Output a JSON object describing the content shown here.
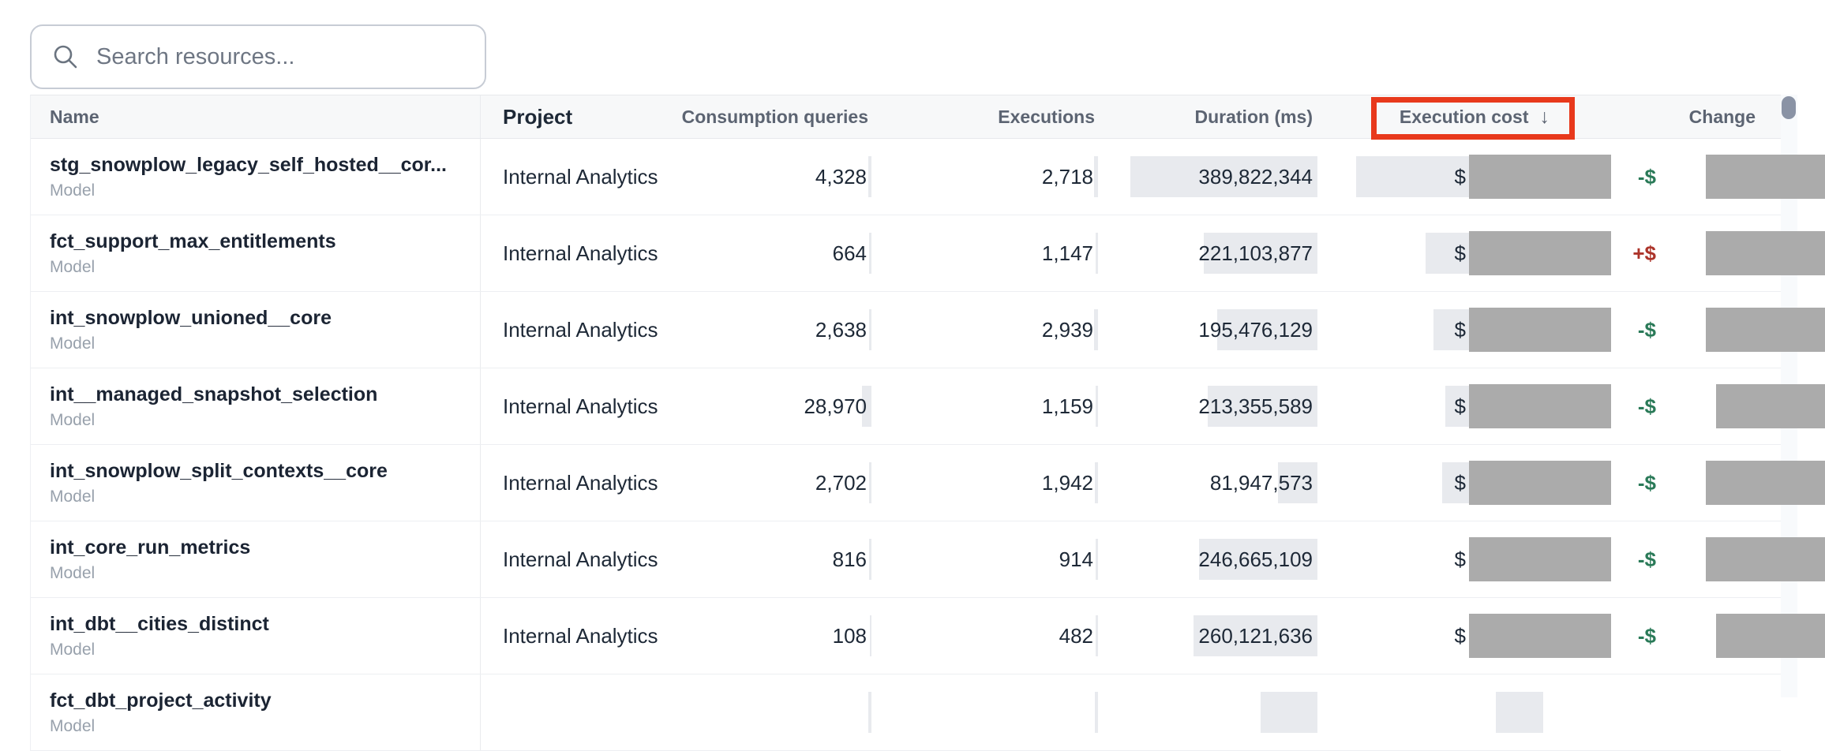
{
  "search": {
    "placeholder": "Search resources..."
  },
  "table": {
    "header": {
      "name": "Name",
      "project": "Project",
      "queries": "Consumption queries",
      "executions": "Executions",
      "duration": "Duration (ms)",
      "cost": "Execution cost",
      "sort_arrow": "↓",
      "change": "Change"
    },
    "sorted_by": "Execution cost",
    "sort_direction": "descending",
    "rows": [
      {
        "name": "stg_snowplow_legacy_self_hosted__cor...",
        "type": "Model",
        "project": "Internal Analytics",
        "queries": "4,328",
        "executions": "2,718",
        "duration": "389,822,344",
        "cost_prefix": "$",
        "cost_redacted": true,
        "change_sign": "-$",
        "change_redacted": true,
        "bars": {
          "queries": 4,
          "executions": 5,
          "duration": 237,
          "cost": 237,
          "change": 152
        }
      },
      {
        "name": "fct_support_max_entitlements",
        "type": "Model",
        "project": "Internal Analytics",
        "queries": "664",
        "executions": "1,147",
        "duration": "221,103,877",
        "cost_prefix": "$",
        "cost_redacted": true,
        "change_sign": "+$",
        "change_redacted": true,
        "bars": {
          "queries": 3,
          "executions": 3,
          "duration": 144,
          "cost": 149,
          "change": 152
        }
      },
      {
        "name": "int_snowplow_unioned__core",
        "type": "Model",
        "project": "Internal Analytics",
        "queries": "2,638",
        "executions": "2,939",
        "duration": "195,476,129",
        "cost_prefix": "$",
        "cost_redacted": true,
        "change_sign": "-$",
        "change_redacted": true,
        "bars": {
          "queries": 3,
          "executions": 5,
          "duration": 127,
          "cost": 139,
          "change": 152
        }
      },
      {
        "name": "int__managed_snapshot_selection",
        "type": "Model",
        "project": "Internal Analytics",
        "queries": "28,970",
        "executions": "1,159",
        "duration": "213,355,589",
        "cost_prefix": "$",
        "cost_redacted": true,
        "change_sign": "-$",
        "change_redacted": true,
        "bars": {
          "queries": 12,
          "executions": 3,
          "duration": 139,
          "cost": 124,
          "change": 139
        }
      },
      {
        "name": "int_snowplow_split_contexts__core",
        "type": "Model",
        "project": "Internal Analytics",
        "queries": "2,702",
        "executions": "1,942",
        "duration": "81,947,573",
        "cost_prefix": "$",
        "cost_redacted": true,
        "change_sign": "-$",
        "change_redacted": true,
        "bars": {
          "queries": 3,
          "executions": 4,
          "duration": 50,
          "cost": 128,
          "change": 152
        }
      },
      {
        "name": "int_core_run_metrics",
        "type": "Model",
        "project": "Internal Analytics",
        "queries": "816",
        "executions": "914",
        "duration": "246,665,109",
        "cost_prefix": "$",
        "cost_redacted": true,
        "change_sign": "-$",
        "change_redacted": true,
        "bars": {
          "queries": 3,
          "executions": 3,
          "duration": 150,
          "cost": 88,
          "change": 152
        }
      },
      {
        "name": "int_dbt__cities_distinct",
        "type": "Model",
        "project": "Internal Analytics",
        "queries": "108",
        "executions": "482",
        "duration": "260,121,636",
        "cost_prefix": "$",
        "cost_redacted": true,
        "change_sign": "-$",
        "change_redacted": true,
        "bars": {
          "queries": 2,
          "executions": 3,
          "duration": 157,
          "cost": 84,
          "change": 139
        }
      },
      {
        "name": "fct_dbt_project_activity",
        "type": "Model",
        "project": "",
        "queries": "",
        "executions": "",
        "duration": "",
        "cost_prefix": "",
        "cost_redacted": false,
        "change_sign": "",
        "change_redacted": false,
        "bars": {
          "queries": 4,
          "executions": 4,
          "duration": 72,
          "cost": 60,
          "change": 0
        }
      }
    ]
  },
  "annotation": {
    "type": "highlight-box",
    "target": "Execution cost column header",
    "color": "#e8391c"
  },
  "colors": {
    "annotation_red": "#e8391c",
    "change_increase": "#ac342a",
    "change_decrease": "#2a7a58",
    "redaction_gray": "#ababab",
    "value_bar_gray": "#e8eaee",
    "header_bg": "#f7f8f9",
    "text_primary": "#1d2836",
    "text_secondary": "#98a1ac",
    "scrollbar_thumb": "#8a93a5"
  }
}
